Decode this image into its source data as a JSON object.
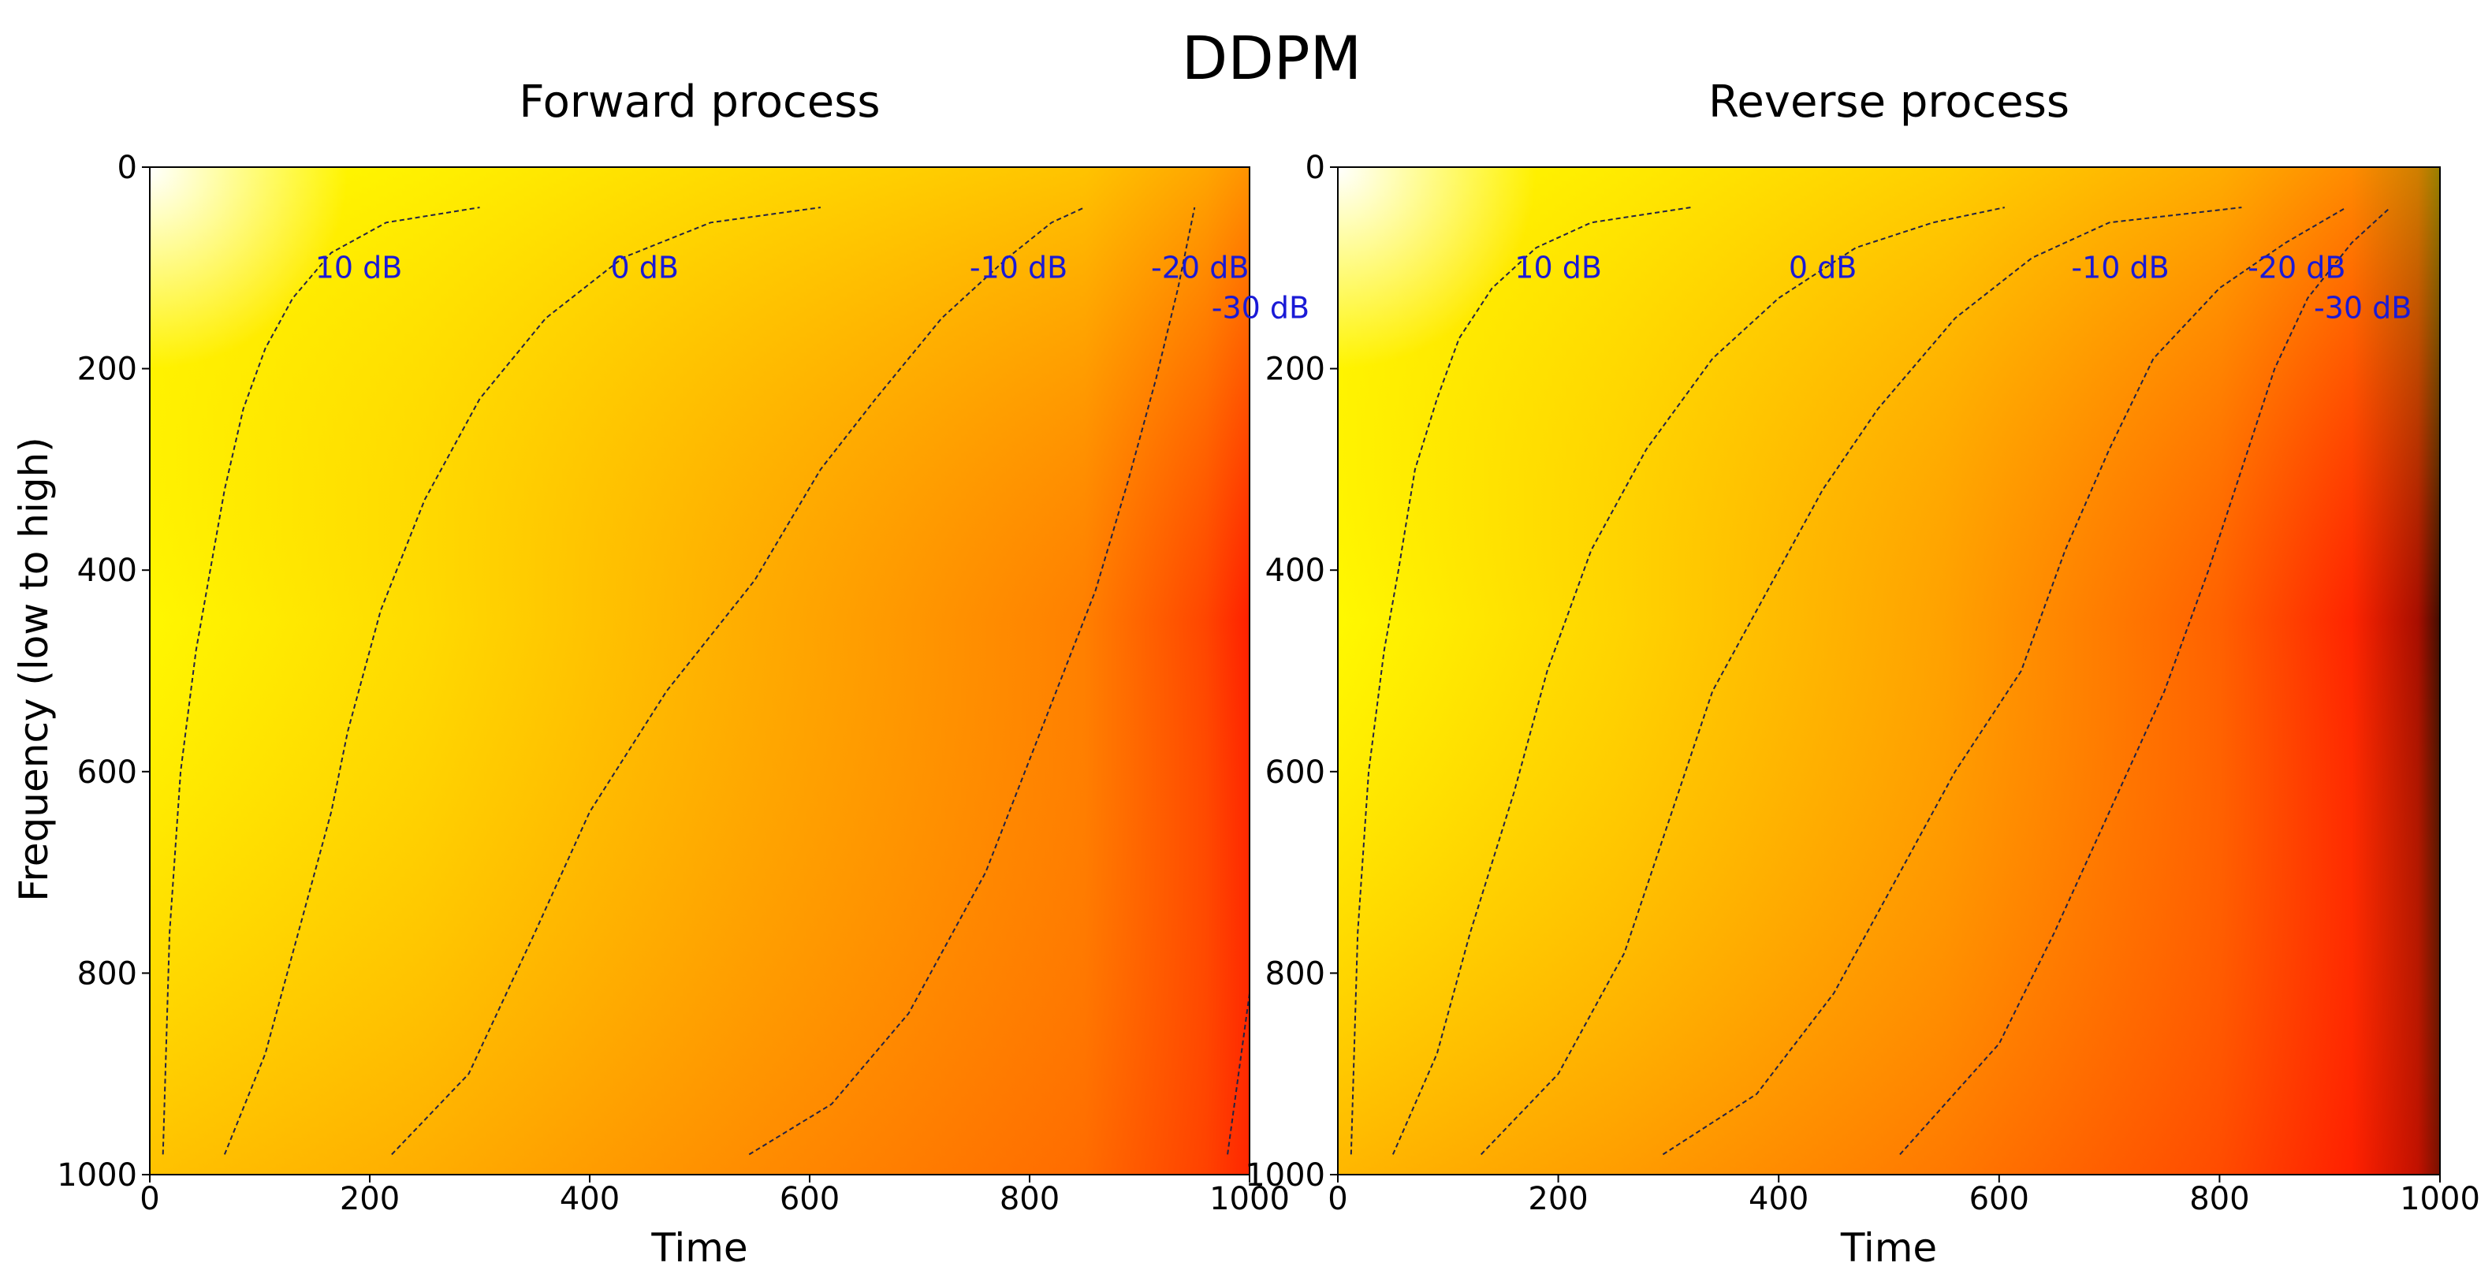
{
  "figure": {
    "title": "DDPM",
    "ylabel": "Frequency (low to high)"
  },
  "chart_data": [
    {
      "type": "heatmap",
      "title": "Forward process",
      "xlabel": "Time",
      "ylabel": "Frequency (low to high)",
      "xlim": [
        0,
        1000
      ],
      "ylim": [
        1000,
        0
      ],
      "xticks": [
        "0",
        "200",
        "400",
        "600",
        "800",
        "1000"
      ],
      "yticks": [
        "0",
        "200",
        "400",
        "600",
        "800",
        "1000"
      ],
      "colormap": "hot",
      "colors": {
        "low": "#ffffff",
        "mid": "#ffff00",
        "high": "#ff0000",
        "max": "#000000"
      },
      "contours": [
        {
          "label": "10 dB",
          "label_at": [
            190,
            110
          ],
          "points": [
            [
              12,
              980
            ],
            [
              18,
              760
            ],
            [
              28,
              600
            ],
            [
              42,
              480
            ],
            [
              55,
              400
            ],
            [
              68,
              320
            ],
            [
              85,
              240
            ],
            [
              105,
              180
            ],
            [
              130,
              130
            ],
            [
              165,
              85
            ],
            [
              215,
              55
            ],
            [
              300,
              40
            ]
          ]
        },
        {
          "label": "0 dB",
          "label_at": [
            450,
            110
          ],
          "points": [
            [
              68,
              980
            ],
            [
              105,
              880
            ],
            [
              135,
              760
            ],
            [
              165,
              640
            ],
            [
              180,
              560
            ],
            [
              210,
              440
            ],
            [
              250,
              330
            ],
            [
              300,
              230
            ],
            [
              360,
              150
            ],
            [
              430,
              90
            ],
            [
              510,
              55
            ],
            [
              610,
              40
            ]
          ]
        },
        {
          "label": "-10 dB",
          "label_at": [
            790,
            110
          ],
          "points": [
            [
              220,
              980
            ],
            [
              290,
              900
            ],
            [
              350,
              760
            ],
            [
              400,
              640
            ],
            [
              470,
              520
            ],
            [
              550,
              410
            ],
            [
              610,
              300
            ],
            [
              660,
              230
            ],
            [
              720,
              150
            ],
            [
              780,
              90
            ],
            [
              820,
              55
            ],
            [
              850,
              40
            ]
          ]
        },
        {
          "label": "-20 dB",
          "label_at": [
            955,
            110
          ],
          "points": [
            [
              545,
              980
            ],
            [
              620,
              930
            ],
            [
              690,
              840
            ],
            [
              760,
              700
            ],
            [
              810,
              560
            ],
            [
              860,
              420
            ],
            [
              890,
              310
            ],
            [
              915,
              210
            ],
            [
              935,
              120
            ],
            [
              950,
              40
            ]
          ]
        },
        {
          "label": "-30 dB",
          "label_at": [
            1010,
            150
          ],
          "points": [
            [
              980,
              980
            ],
            [
              1000,
              820
            ]
          ]
        }
      ]
    },
    {
      "type": "heatmap",
      "title": "Reverse process",
      "xlabel": "Time",
      "ylabel": "",
      "xlim": [
        0,
        1000
      ],
      "ylim": [
        1000,
        0
      ],
      "xticks": [
        "0",
        "200",
        "400",
        "600",
        "800",
        "1000"
      ],
      "yticks": [
        "0",
        "200",
        "400",
        "600",
        "800",
        "1000"
      ],
      "colormap": "hot",
      "colors": {
        "low": "#ffffff",
        "mid": "#ffff00",
        "high": "#ff0000",
        "max": "#000000"
      },
      "contours": [
        {
          "label": "10 dB",
          "label_at": [
            200,
            110
          ],
          "points": [
            [
              12,
              980
            ],
            [
              18,
              760
            ],
            [
              28,
              600
            ],
            [
              42,
              480
            ],
            [
              55,
              400
            ],
            [
              70,
              300
            ],
            [
              90,
              230
            ],
            [
              110,
              170
            ],
            [
              140,
              120
            ],
            [
              180,
              80
            ],
            [
              230,
              55
            ],
            [
              320,
              40
            ]
          ]
        },
        {
          "label": "0 dB",
          "label_at": [
            440,
            110
          ],
          "points": [
            [
              50,
              980
            ],
            [
              90,
              880
            ],
            [
              120,
              760
            ],
            [
              160,
              620
            ],
            [
              190,
              500
            ],
            [
              230,
              380
            ],
            [
              280,
              280
            ],
            [
              340,
              190
            ],
            [
              400,
              130
            ],
            [
              470,
              80
            ],
            [
              540,
              55
            ],
            [
              605,
              40
            ]
          ]
        },
        {
          "label": "-10 dB",
          "label_at": [
            710,
            110
          ],
          "points": [
            [
              130,
              980
            ],
            [
              200,
              900
            ],
            [
              260,
              780
            ],
            [
              300,
              650
            ],
            [
              340,
              520
            ],
            [
              390,
              420
            ],
            [
              440,
              320
            ],
            [
              490,
              240
            ],
            [
              560,
              150
            ],
            [
              630,
              90
            ],
            [
              700,
              55
            ],
            [
              820,
              40
            ]
          ]
        },
        {
          "label": "-20 dB",
          "label_at": [
            870,
            110
          ],
          "points": [
            [
              295,
              980
            ],
            [
              380,
              920
            ],
            [
              450,
              820
            ],
            [
              510,
              700
            ],
            [
              560,
              600
            ],
            [
              620,
              500
            ],
            [
              660,
              380
            ],
            [
              700,
              280
            ],
            [
              740,
              190
            ],
            [
              800,
              120
            ],
            [
              860,
              75
            ],
            [
              915,
              40
            ]
          ]
        },
        {
          "label": "-30 dB",
          "label_at": [
            930,
            150
          ],
          "points": [
            [
              510,
              980
            ],
            [
              600,
              870
            ],
            [
              650,
              760
            ],
            [
              700,
              640
            ],
            [
              750,
              520
            ],
            [
              790,
              400
            ],
            [
              820,
              300
            ],
            [
              850,
              200
            ],
            [
              880,
              130
            ],
            [
              920,
              75
            ],
            [
              955,
              40
            ]
          ]
        }
      ]
    }
  ]
}
